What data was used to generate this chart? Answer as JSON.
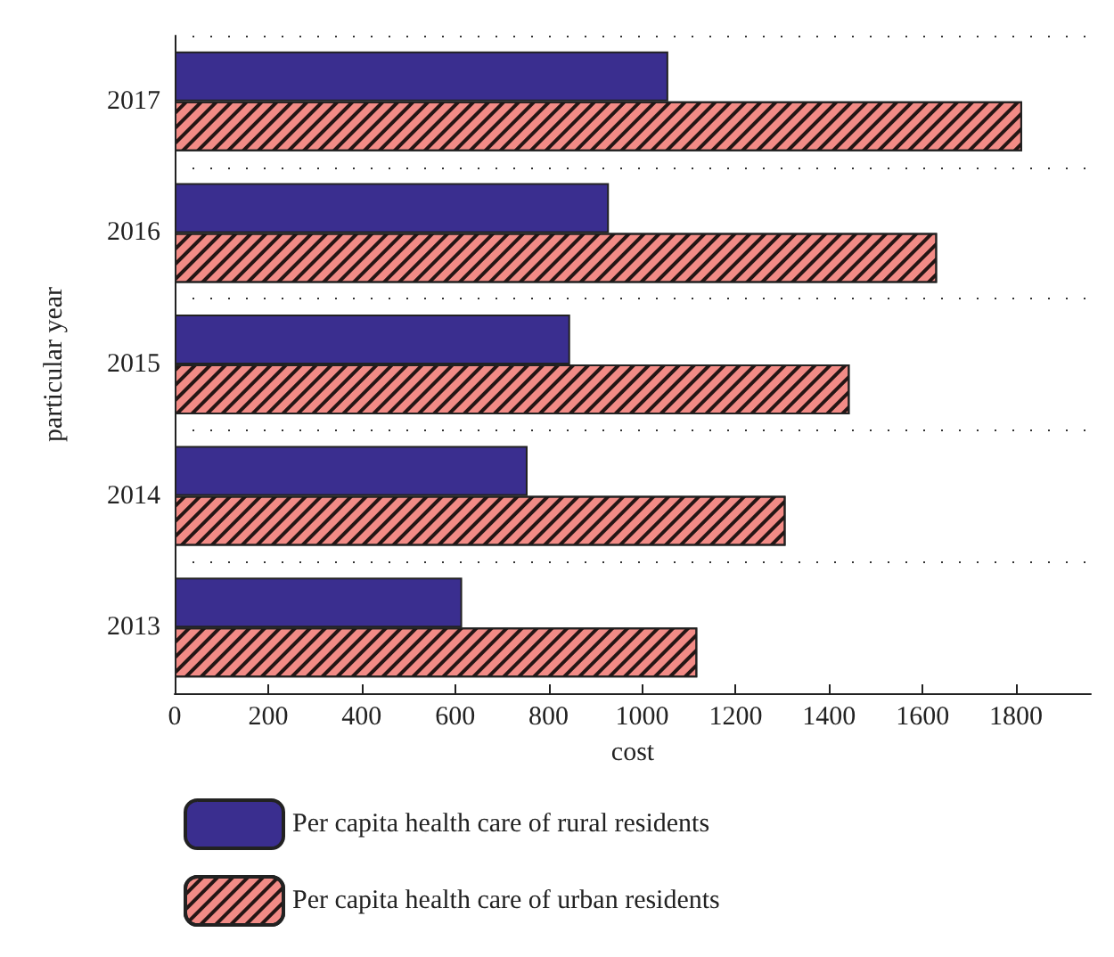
{
  "chart_data": {
    "type": "bar",
    "orientation": "horizontal",
    "xlabel": "cost",
    "ylabel": "particular year",
    "categories": [
      "2017",
      "2016",
      "2015",
      "2014",
      "2013"
    ],
    "series": [
      {
        "name": "Per capita health care of rural residents",
        "color": "#3a2e8f",
        "values": [
          1056,
          929,
          846,
          755,
          615
        ]
      },
      {
        "name": "Per capita health care of urban residents",
        "color": "#f28b86",
        "values": [
          1813,
          1631,
          1444,
          1307,
          1118
        ]
      }
    ],
    "xlim": [
      0,
      1960
    ],
    "xticks": [
      0,
      200,
      400,
      600,
      800,
      1000,
      1200,
      1400,
      1600,
      1800
    ],
    "grid": "y",
    "legend": "bottom"
  }
}
